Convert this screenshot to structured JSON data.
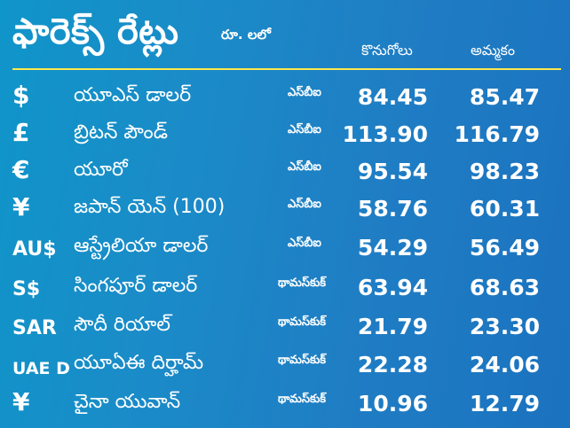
{
  "header": {
    "title": "ఫారెక్స్ రేట్లు",
    "unit": "రూ. లలో",
    "col_buy": "కొనుగోలు",
    "col_sell": "అమ్మకం"
  },
  "rows": [
    {
      "symbol": "$",
      "name": "యూఎస్ డాలర్",
      "bank": "ఎస్‌బీఐ",
      "buy": "84.45",
      "sell": "85.47"
    },
    {
      "symbol": "£",
      "name": "బ్రిటన్ పౌండ్",
      "bank": "ఎస్‌బీఐ",
      "buy": "113.90",
      "sell": "116.79"
    },
    {
      "symbol": "€",
      "name": "యూరో",
      "bank": "ఎస్‌బీఐ",
      "buy": "95.54",
      "sell": "98.23"
    },
    {
      "symbol": "¥",
      "name": "జపాన్ యెన్ (100)",
      "bank": "ఎస్‌బీఐ",
      "buy": "58.76",
      "sell": "60.31"
    },
    {
      "symbol": "AU$",
      "name": "ఆస్ట్రేలియా డాలర్",
      "bank": "ఎస్‌బీఐ",
      "buy": "54.29",
      "sell": "56.49"
    },
    {
      "symbol": "S$",
      "name": "సింగపూర్ డాలర్",
      "bank": "థామస్‌కుక్",
      "buy": "63.94",
      "sell": "68.63"
    },
    {
      "symbol": "SAR",
      "name": "సౌదీ రియాల్",
      "bank": "థామస్‌కుక్",
      "buy": "21.79",
      "sell": "23.30"
    },
    {
      "symbol": "UAE D",
      "name": "యూఏఈ దిర్హామ్",
      "bank": "థామస్‌కుక్",
      "buy": "22.28",
      "sell": "24.06"
    },
    {
      "symbol": "¥",
      "name": "చైనా యువాన్",
      "bank": "థామస్‌కుక్",
      "buy": "10.96",
      "sell": "12.79"
    }
  ],
  "colors": {
    "background": "#1a8cc8",
    "divider": "#ffe84d",
    "text": "#ffffff"
  }
}
